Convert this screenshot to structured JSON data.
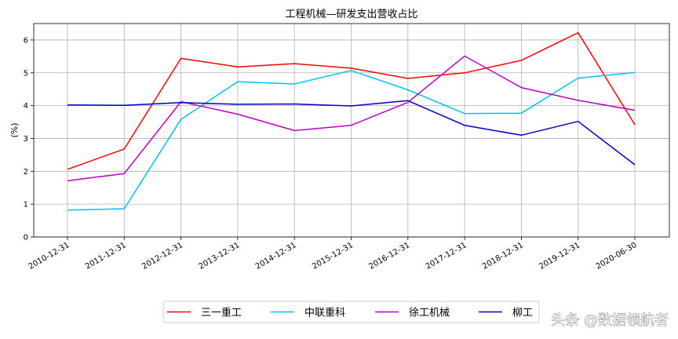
{
  "chart_data": {
    "type": "line",
    "title": "工程机械—研发支出营收占比",
    "xlabel": "",
    "ylabel": "(%)",
    "categories": [
      "2010-12-31",
      "2011-12-31",
      "2012-12-31",
      "2013-12-31",
      "2014-12-31",
      "2015-12-31",
      "2016-12-31",
      "2017-12-31",
      "2018-12-31",
      "2019-12-31",
      "2020-06-30"
    ],
    "ylim": [
      0,
      6.5
    ],
    "yticks": [
      0,
      1,
      2,
      3,
      4,
      5,
      6
    ],
    "grid": true,
    "legend_position": "bottom-center",
    "series": [
      {
        "name": "三一重工",
        "color": "#ff0000",
        "values": [
          2.06,
          2.68,
          5.44,
          5.18,
          5.28,
          5.14,
          4.83,
          5.0,
          5.38,
          6.22,
          3.42
        ]
      },
      {
        "name": "中联重科",
        "color": "#00bfff",
        "values": [
          0.82,
          0.86,
          3.58,
          4.73,
          4.66,
          5.07,
          4.48,
          3.76,
          3.77,
          4.84,
          5.01
        ]
      },
      {
        "name": "徐工机械",
        "color": "#bf00bf",
        "values": [
          1.71,
          1.93,
          4.12,
          3.74,
          3.24,
          3.4,
          4.1,
          5.51,
          4.55,
          4.16,
          3.86
        ]
      },
      {
        "name": "柳工",
        "color": "#0000bf",
        "values": [
          4.02,
          4.01,
          4.09,
          4.04,
          4.05,
          3.99,
          4.15,
          3.4,
          3.1,
          3.52,
          2.2
        ]
      }
    ]
  },
  "watermark": "头条 @数据领航者"
}
